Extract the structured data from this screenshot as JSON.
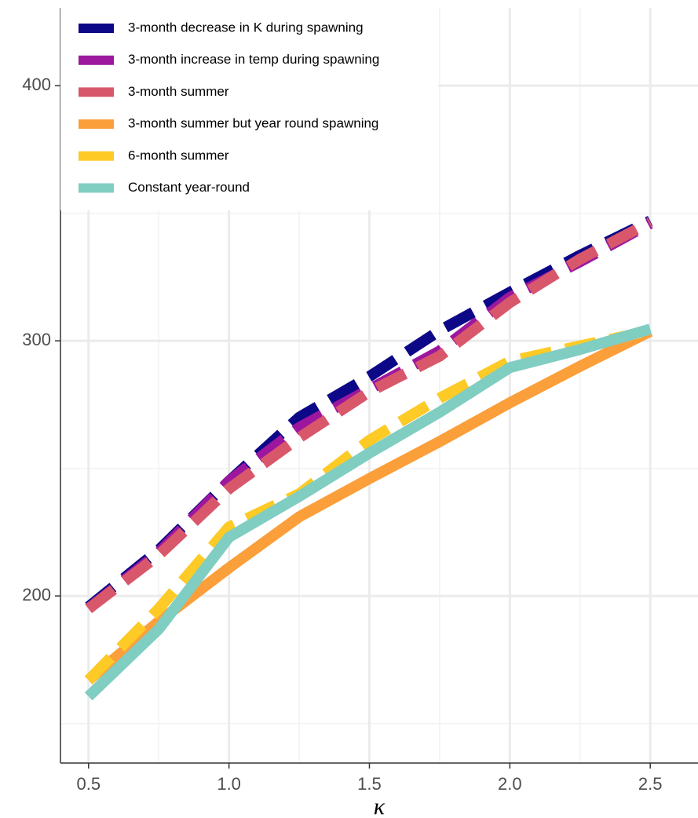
{
  "chart_data": {
    "type": "line",
    "x_label": "κ",
    "x": [
      0.5,
      0.75,
      1.0,
      1.25,
      1.5,
      1.75,
      2.0,
      2.25,
      2.5
    ],
    "series": [
      {
        "name": "3-month decrease in K during spawning",
        "color": "#0d0887",
        "linestyle": "dashed",
        "values": [
          195.7,
          218,
          245,
          270,
          286,
          304,
          319,
          333.5,
          347
        ]
      },
      {
        "name": "3-month increase in temp during spawning",
        "color": "#9c179e",
        "linestyle": "dashed",
        "values": [
          195,
          217,
          245,
          266,
          281,
          296,
          317,
          331,
          346
        ]
      },
      {
        "name": "3-month summer",
        "color": "#d8576b",
        "linestyle": "dashed",
        "values": [
          195,
          216,
          242,
          262,
          280,
          294,
          315,
          332,
          346.5
        ]
      },
      {
        "name": "3-month summer but year round spawning",
        "color": "#fb9f3a",
        "linestyle": "solid",
        "values": [
          167,
          190,
          211,
          231,
          246,
          260.5,
          275.7,
          290,
          303.7
        ]
      },
      {
        "name": "6-month summer",
        "color": "#fdca26",
        "linestyle": "dashed",
        "values": [
          167,
          195,
          227,
          240,
          261,
          277.5,
          292,
          298,
          304
        ]
      },
      {
        "name": "Constant year-round",
        "color": "#80cdc1",
        "linestyle": "solid",
        "values": [
          160.6,
          187,
          223,
          239,
          256,
          272,
          289.5,
          296.6,
          304.6
        ]
      }
    ],
    "xlim": [
      0.4,
      2.67
    ],
    "ylim": [
      134.5,
      430.5
    ],
    "xticks": [
      0.5,
      {
        "value": 1.0,
        "label": "1.0"
      },
      1.5,
      {
        "value": 2.0,
        "label": "2.0"
      },
      2.5
    ],
    "yticks": [
      200,
      300,
      400
    ],
    "minor_xticks": [
      0.75,
      1.25,
      1.75,
      2.25
    ],
    "minor_yticks": [
      150,
      250,
      350
    ],
    "grid": true,
    "legend_position": "top-left"
  }
}
